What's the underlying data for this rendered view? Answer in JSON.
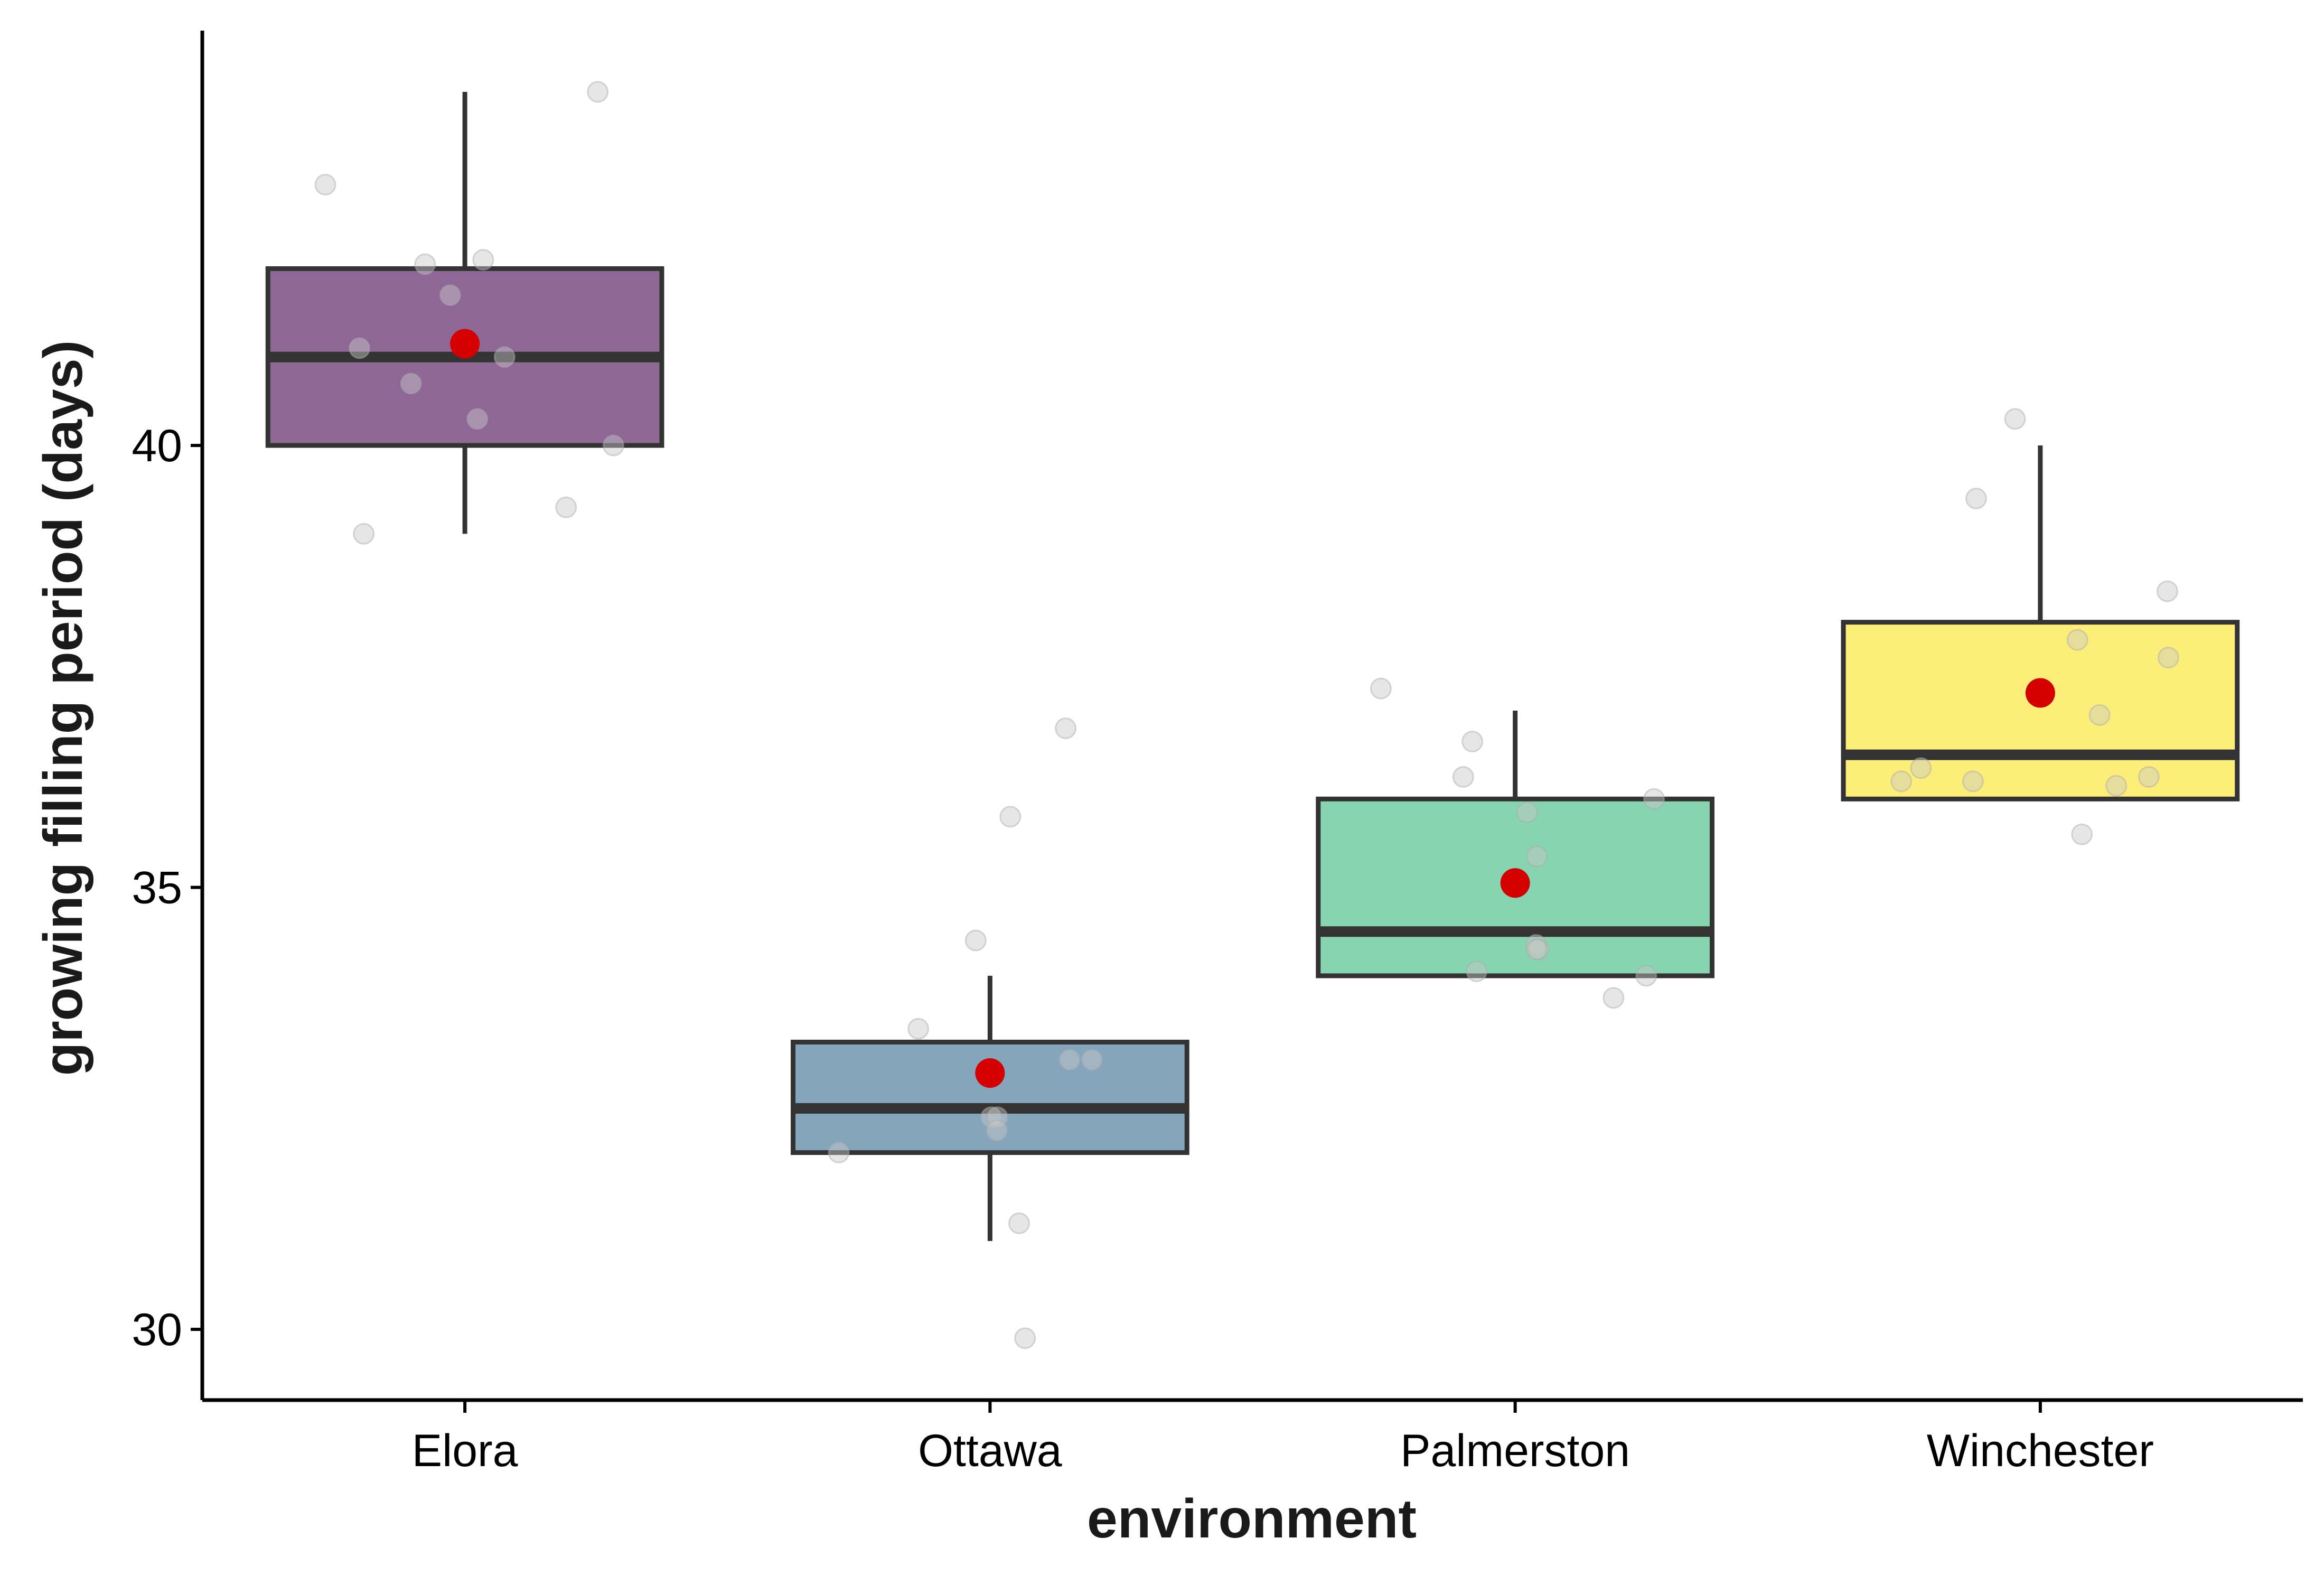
{
  "chart_data": {
    "type": "box",
    "xlabel": "environment",
    "ylabel": "growing filling period (days)",
    "categories": [
      "Elora",
      "Ottawa",
      "Palmerston",
      "Winchester"
    ],
    "y_ticks": [
      30,
      35,
      40
    ],
    "ylim": [
      29.2,
      44.8
    ],
    "grid": false,
    "legend": "none",
    "colors": {
      "fills": [
        "#8e6797",
        "#85a5bd",
        "#87d4b0",
        "#fdee79"
      ],
      "box_stroke": "#333333",
      "mean_marker": "#d40000",
      "jitter_point": "#c8c8c8",
      "axis": "#000000"
    },
    "boxes": [
      {
        "category": "Elora",
        "q1": 40.0,
        "median": 41.0,
        "q3": 42.0,
        "whisker_low": 39.0,
        "whisker_high": 44.0,
        "mean": 41.15
      },
      {
        "category": "Ottawa",
        "q1": 32.0,
        "median": 32.5,
        "q3": 33.25,
        "whisker_low": 31.0,
        "whisker_high": 34.0,
        "mean": 32.9
      },
      {
        "category": "Palmerston",
        "q1": 34.0,
        "median": 34.5,
        "q3": 36.0,
        "whisker_low": 34.0,
        "whisker_high": 37.0,
        "mean": 35.05
      },
      {
        "category": "Winchester",
        "q1": 36.0,
        "median": 36.5,
        "q3": 38.0,
        "whisker_low": 36.0,
        "whisker_high": 40.0,
        "mean": 37.2
      }
    ],
    "points": [
      {
        "category": "Elora",
        "values": [
          44.0,
          42.95,
          42.1,
          42.05,
          41.7,
          41.0,
          41.1,
          40.7,
          40.3,
          40.0,
          39.3,
          39.0
        ]
      },
      {
        "category": "Ottawa",
        "values": [
          36.8,
          35.8,
          34.4,
          33.4,
          33.05,
          33.05,
          32.4,
          32.4,
          32.25,
          32.0,
          31.2,
          29.9
        ]
      },
      {
        "category": "Palmerston",
        "values": [
          37.25,
          36.65,
          36.25,
          36.0,
          35.85,
          35.35,
          34.35,
          34.3,
          34.3,
          34.05,
          34.0,
          33.75
        ]
      },
      {
        "category": "Winchester",
        "values": [
          40.3,
          39.4,
          38.35,
          37.8,
          37.6,
          36.95,
          36.35,
          36.25,
          36.2,
          36.2,
          36.15,
          35.6
        ]
      }
    ]
  }
}
